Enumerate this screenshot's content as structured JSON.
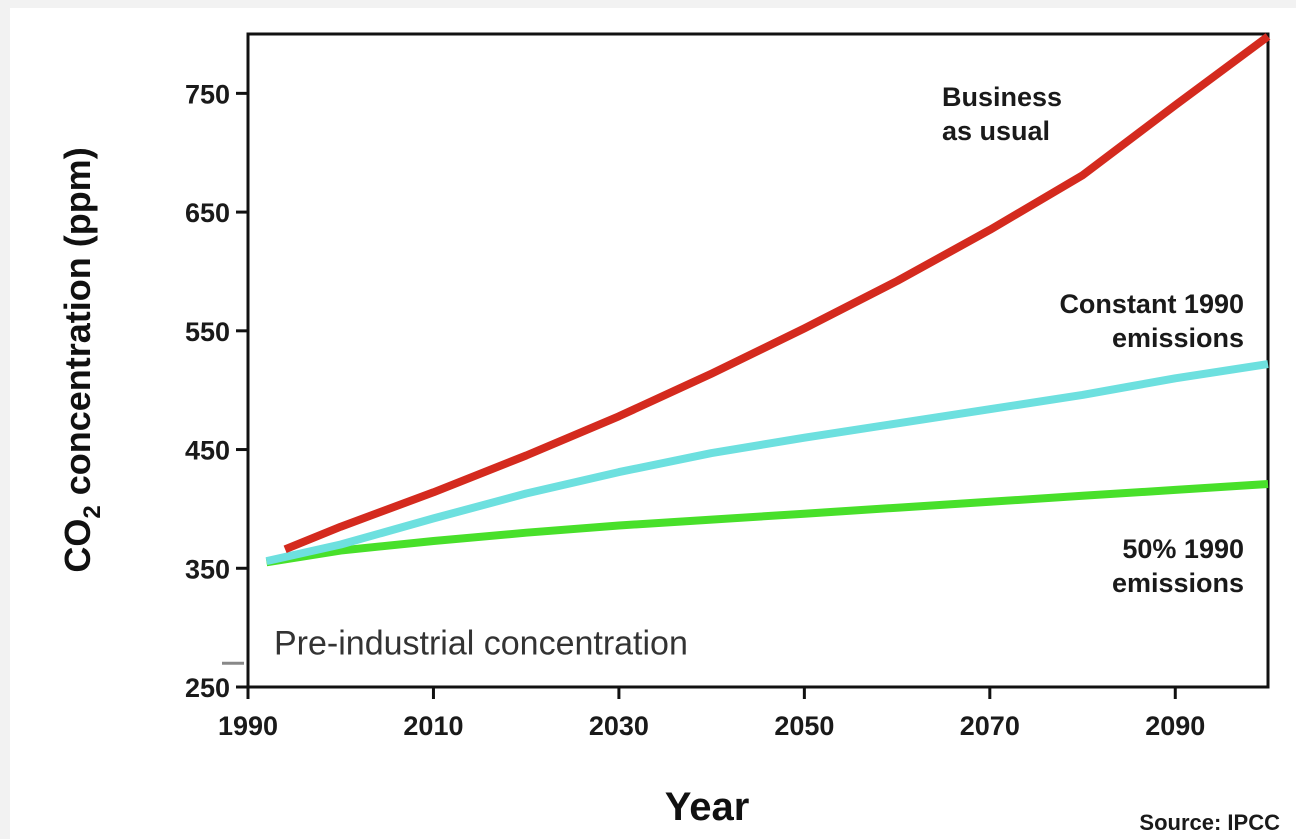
{
  "chart_data": {
    "type": "line",
    "xlabel": "Year",
    "ylabel": "CO2 concentration (ppm)",
    "ylabel_parts": {
      "pre": "CO",
      "sub": "2",
      "post": " concentration (ppm)"
    },
    "xlim": [
      1990,
      2100
    ],
    "ylim": [
      250,
      800
    ],
    "x_ticks": [
      1990,
      2010,
      2030,
      2050,
      2070,
      2090
    ],
    "y_ticks": [
      250,
      350,
      450,
      550,
      650,
      750
    ],
    "grid": false,
    "series": [
      {
        "name": "Business as usual",
        "label_lines": [
          "Business",
          "as usual"
        ],
        "color": "#d42a1e",
        "x": [
          1994,
          2000,
          2010,
          2020,
          2030,
          2040,
          2050,
          2060,
          2070,
          2080,
          2090,
          2100
        ],
        "y": [
          366,
          385,
          414,
          445,
          478,
          514,
          552,
          592,
          635,
          681,
          740,
          798
        ]
      },
      {
        "name": "Constant 1990 emissions",
        "label_lines": [
          "Constant 1990",
          "emissions"
        ],
        "color": "#6de0df",
        "x": [
          1992,
          2000,
          2010,
          2020,
          2030,
          2040,
          2050,
          2060,
          2070,
          2080,
          2090,
          2100
        ],
        "y": [
          356,
          370,
          392,
          413,
          431,
          447,
          460,
          472,
          484,
          496,
          510,
          522
        ]
      },
      {
        "name": "50% 1990 emissions",
        "label_lines": [
          "50% 1990",
          "emissions"
        ],
        "color": "#48e02a",
        "x": [
          1992,
          2000,
          2010,
          2020,
          2030,
          2040,
          2050,
          2060,
          2070,
          2080,
          2090,
          2100
        ],
        "y": [
          355,
          365,
          373,
          380,
          386,
          391,
          396,
          401,
          406,
          411,
          416,
          421
        ]
      }
    ],
    "annotations": [
      {
        "text": "Pre-industrial concentration",
        "y": 270
      }
    ],
    "source": "Source: IPCC"
  }
}
